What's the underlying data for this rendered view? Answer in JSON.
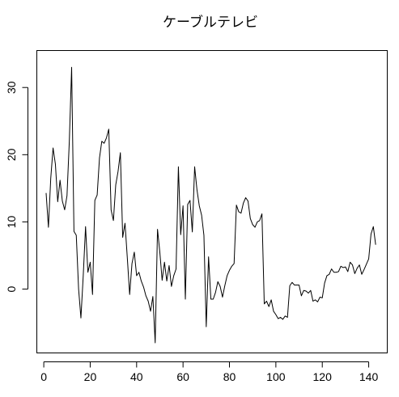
{
  "chart_data": {
    "type": "line",
    "title": "ケーブルテレビ",
    "xlabel": "",
    "ylabel": "",
    "xlim": [
      -3,
      148
    ],
    "ylim": [
      -9.5,
      35.5
    ],
    "x_ticks": [
      0,
      20,
      40,
      60,
      80,
      100,
      120,
      140
    ],
    "y_ticks": [
      0,
      10,
      20,
      30
    ],
    "grid": false,
    "series": [
      {
        "values": [
          14.3,
          9.2,
          16.5,
          21.0,
          18.6,
          13.0,
          16.2,
          13.1,
          11.8,
          13.9,
          22.0,
          33.0,
          8.6,
          8.0,
          0.0,
          -4.3,
          2.0,
          9.3,
          2.5,
          4.0,
          -0.8,
          13.2,
          14.0,
          19.5,
          22.0,
          21.7,
          22.5,
          23.8,
          11.8,
          10.2,
          15.5,
          17.5,
          20.3,
          7.7,
          9.8,
          4.6,
          -0.8,
          3.8,
          5.5,
          2.0,
          2.5,
          1.2,
          0.3,
          -1.0,
          -1.8,
          -3.3,
          -1.1,
          -8.0,
          8.9,
          5.5,
          1.3,
          4.0,
          1.2,
          3.5,
          0.4,
          2.0,
          3.0,
          18.2,
          8.1,
          12.4,
          -1.5,
          12.6,
          13.2,
          8.5,
          18.2,
          14.8,
          12.4,
          11.0,
          8.0,
          -5.6,
          4.8,
          -1.5,
          -1.5,
          -0.5,
          1.1,
          0.4,
          -1.2,
          0.5,
          2.0,
          2.8,
          3.4,
          3.8,
          12.5,
          11.5,
          11.3,
          12.8,
          13.6,
          13.1,
          10.5,
          9.6,
          9.2,
          10.0,
          10.2,
          11.2,
          -2.2,
          -1.8,
          -2.6,
          -1.6,
          -3.3,
          -3.8,
          -4.4,
          -4.2,
          -4.5,
          -4.0,
          -4.2,
          0.5,
          1.0,
          0.6,
          0.6,
          0.6,
          -1.0,
          -0.2,
          -0.3,
          -0.6,
          -0.2,
          -1.8,
          -1.6,
          -1.9,
          -1.2,
          -1.3,
          0.9,
          2.0,
          2.2,
          3.0,
          2.5,
          2.5,
          2.6,
          3.4,
          3.2,
          3.3,
          2.6,
          4.0,
          3.6,
          2.3,
          3.1,
          3.6,
          2.2,
          2.9,
          3.7,
          4.5,
          8.2,
          9.3,
          6.6
        ]
      }
    ]
  }
}
